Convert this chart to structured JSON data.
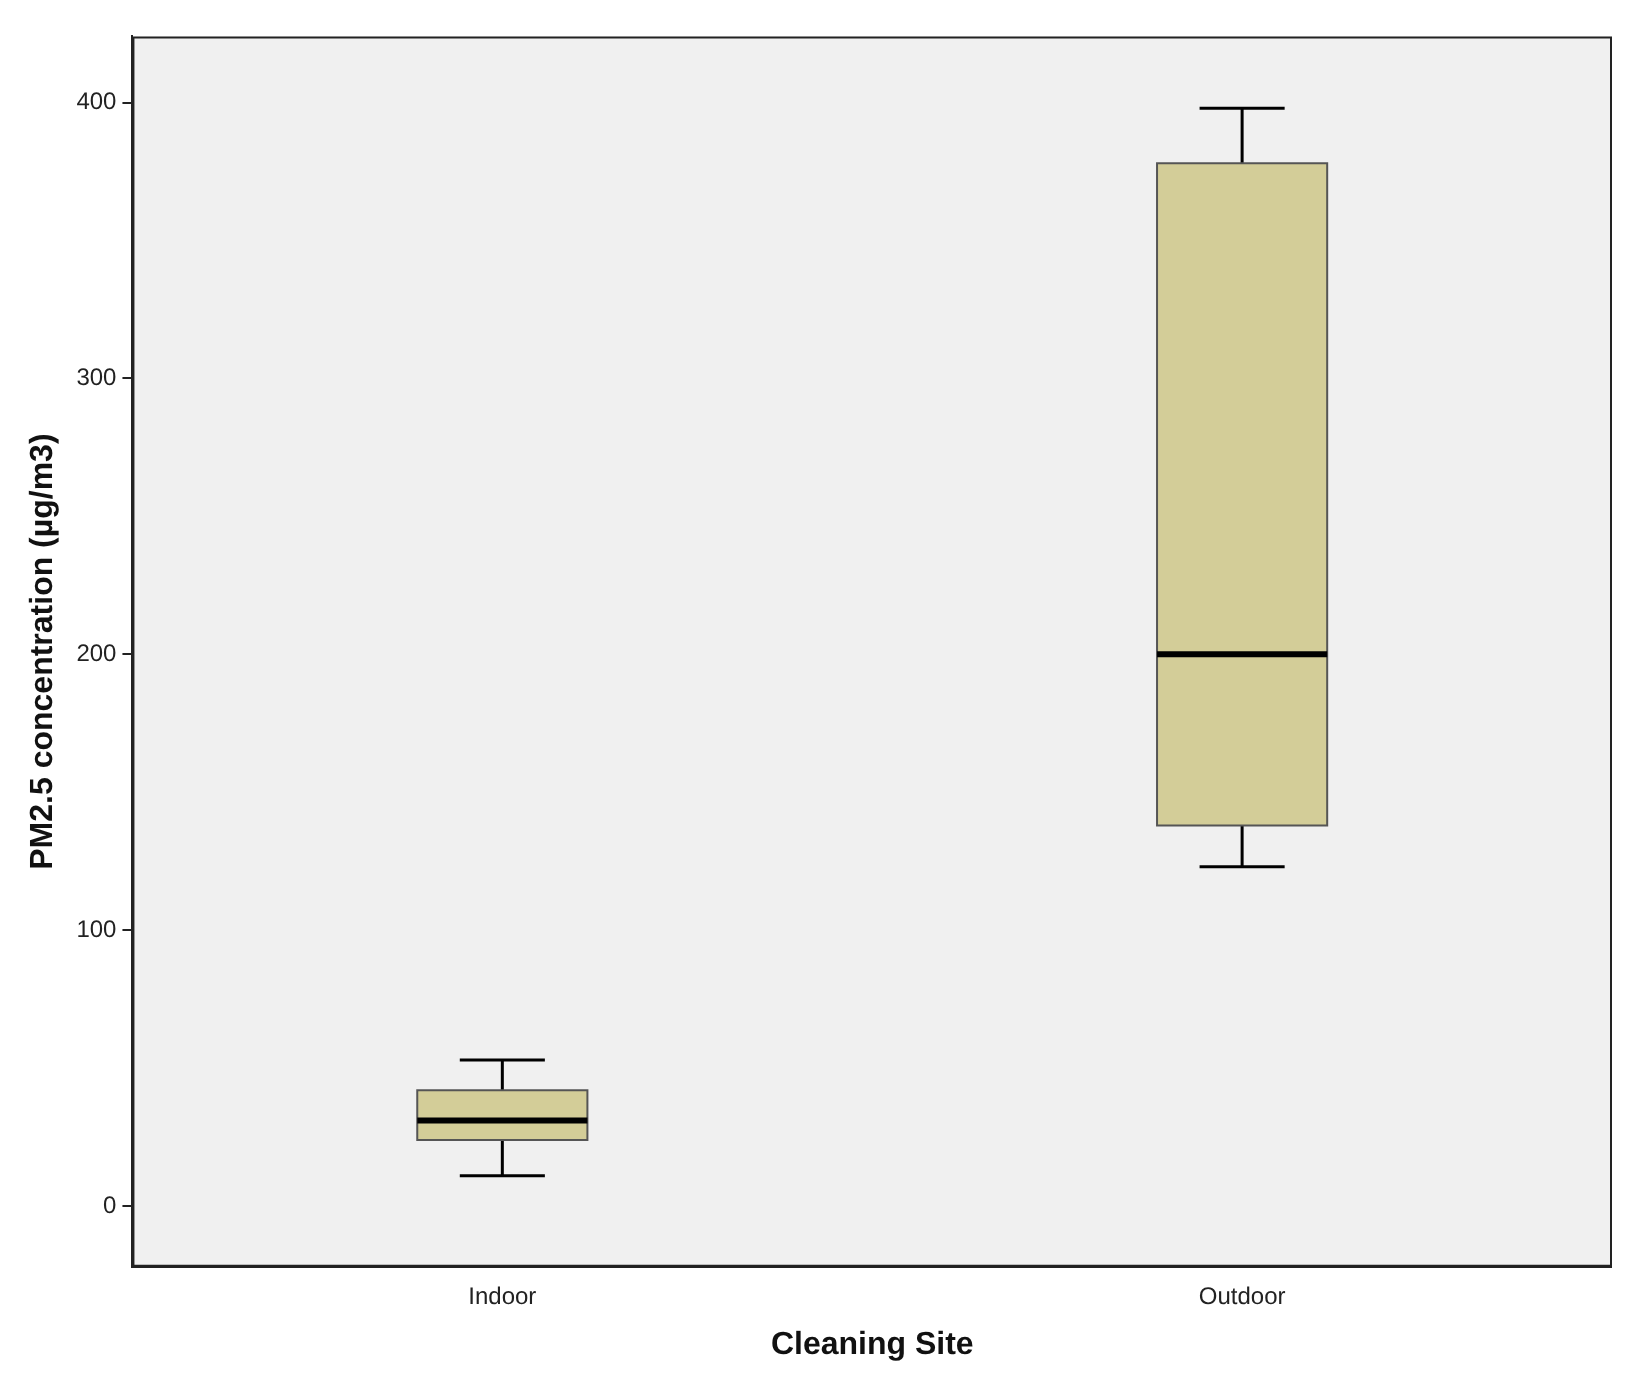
{
  "chart_data": {
    "type": "box",
    "xlabel": "Cleaning Site",
    "ylabel": "PM2.5 concentration (µg/m3)",
    "categories": [
      "Indoor",
      "Outdoor"
    ],
    "color": "#d3cd98",
    "boxes": [
      {
        "low": 11,
        "q1": 24,
        "median": 31,
        "q3": 42,
        "high": 53
      },
      {
        "low": 123,
        "q1": 138,
        "median": 200,
        "q3": 378,
        "high": 398
      }
    ],
    "ylim": [
      -22,
      424
    ],
    "yticks": [
      0,
      100,
      200,
      300,
      400
    ],
    "grid": false,
    "legend": false
  }
}
